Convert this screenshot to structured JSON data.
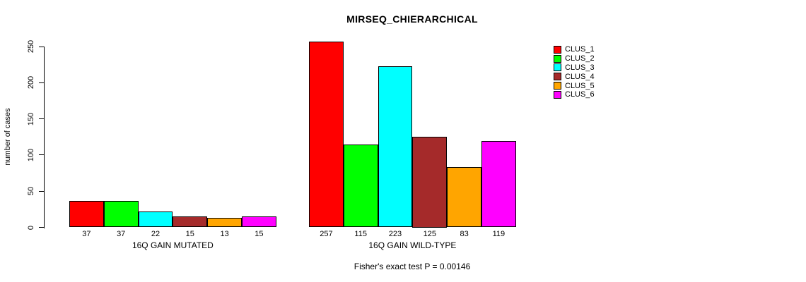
{
  "chart_data": {
    "type": "bar",
    "title": "MIRSEQ_CHIERARCHICAL",
    "ylabel": "number of cases",
    "xlabel": "",
    "ylim": [
      0,
      250
    ],
    "yticks": [
      0,
      50,
      100,
      150,
      200,
      250
    ],
    "grid": false,
    "legend_position": "top-right",
    "categories": [
      "16Q GAIN MUTATED",
      "16Q GAIN WILD-TYPE"
    ],
    "series": [
      {
        "name": "CLUS_1",
        "color": "#ff0000",
        "values": [
          37,
          257
        ]
      },
      {
        "name": "CLUS_2",
        "color": "#00ff00",
        "values": [
          37,
          115
        ]
      },
      {
        "name": "CLUS_3",
        "color": "#00ffff",
        "values": [
          22,
          223
        ]
      },
      {
        "name": "CLUS_4",
        "color": "#a52a2a",
        "values": [
          15,
          125
        ]
      },
      {
        "name": "CLUS_5",
        "color": "#ffa500",
        "values": [
          13,
          83
        ]
      },
      {
        "name": "CLUS_6",
        "color": "#ff00ff",
        "values": [
          15,
          119
        ]
      }
    ],
    "bar_value_labels": [
      [
        37,
        37,
        22,
        15,
        13,
        15
      ],
      [
        257,
        115,
        223,
        125,
        83,
        119
      ]
    ],
    "annotation": "Fisher's exact test P = 0.00146"
  }
}
